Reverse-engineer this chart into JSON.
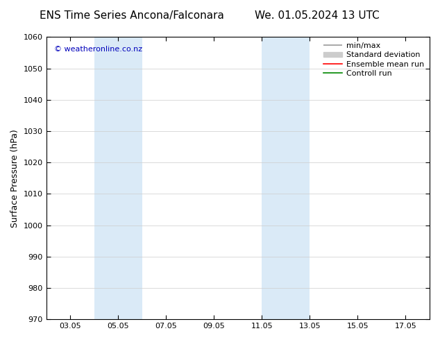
{
  "title_left": "ENS Time Series Ancona/Falconara",
  "title_right": "We. 01.05.2024 13 UTC",
  "ylabel": "Surface Pressure (hPa)",
  "ylim": [
    970,
    1060
  ],
  "yticks": [
    970,
    980,
    990,
    1000,
    1010,
    1020,
    1030,
    1040,
    1050,
    1060
  ],
  "xlim": [
    2.0,
    18.0
  ],
  "xtick_labels": [
    "03.05",
    "05.05",
    "07.05",
    "09.05",
    "11.05",
    "13.05",
    "15.05",
    "17.05"
  ],
  "xtick_positions": [
    3,
    5,
    7,
    9,
    11,
    13,
    15,
    17
  ],
  "weekend_bands": [
    {
      "start": 4.0,
      "end": 6.0
    },
    {
      "start": 11.0,
      "end": 13.0
    }
  ],
  "weekend_color": "#daeaf7",
  "background_color": "#ffffff",
  "watermark_text": "© weatheronline.co.nz",
  "watermark_color": "#0000bb",
  "legend_items": [
    {
      "label": "min/max",
      "color": "#999999",
      "lw": 1.2
    },
    {
      "label": "Standard deviation",
      "color": "#cccccc",
      "lw": 6
    },
    {
      "label": "Ensemble mean run",
      "color": "#ff0000",
      "lw": 1.2
    },
    {
      "label": "Controll run",
      "color": "#008800",
      "lw": 1.2
    }
  ],
  "title_fontsize": 11,
  "axis_label_fontsize": 9,
  "tick_fontsize": 8,
  "legend_fontsize": 8,
  "watermark_fontsize": 8
}
